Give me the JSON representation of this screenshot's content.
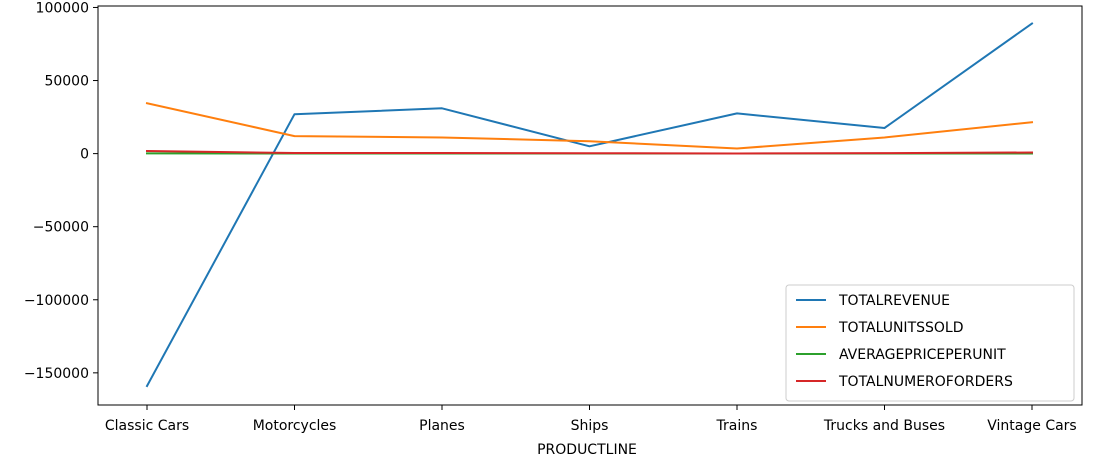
{
  "chart_data": {
    "type": "line",
    "xlabel": "PRODUCTLINE",
    "ylabel": "",
    "categories": [
      "Classic Cars",
      "Motorcycles",
      "Planes",
      "Ships",
      "Trains",
      "Trucks and Buses",
      "Vintage Cars"
    ],
    "yticks": [
      100000,
      50000,
      0,
      -50000,
      -100000,
      -150000
    ],
    "ytick_labels": [
      "100000",
      "50000",
      "0",
      "−50000",
      "−100000",
      "−150000"
    ],
    "ylim": [
      -172000,
      101000
    ],
    "grid": false,
    "legend": {
      "location": "lower-right"
    },
    "series": [
      {
        "name": "TOTALREVENUE",
        "color": "#1f77b4",
        "values": [
          -159000,
          27000,
          31000,
          5000,
          27500,
          17500,
          89000
        ]
      },
      {
        "name": "TOTALUNITSSOLD",
        "color": "#ff7f0e",
        "values": [
          34500,
          12000,
          11000,
          8500,
          3500,
          11000,
          21500
        ]
      },
      {
        "name": "AVERAGEPRICEPERUNIT",
        "color": "#2ca02c",
        "values": [
          150,
          100,
          100,
          100,
          100,
          100,
          110
        ]
      },
      {
        "name": "TOTALNUMEROFORDERS",
        "color": "#d62728",
        "values": [
          1800,
          450,
          390,
          300,
          90,
          360,
          750
        ]
      }
    ]
  }
}
